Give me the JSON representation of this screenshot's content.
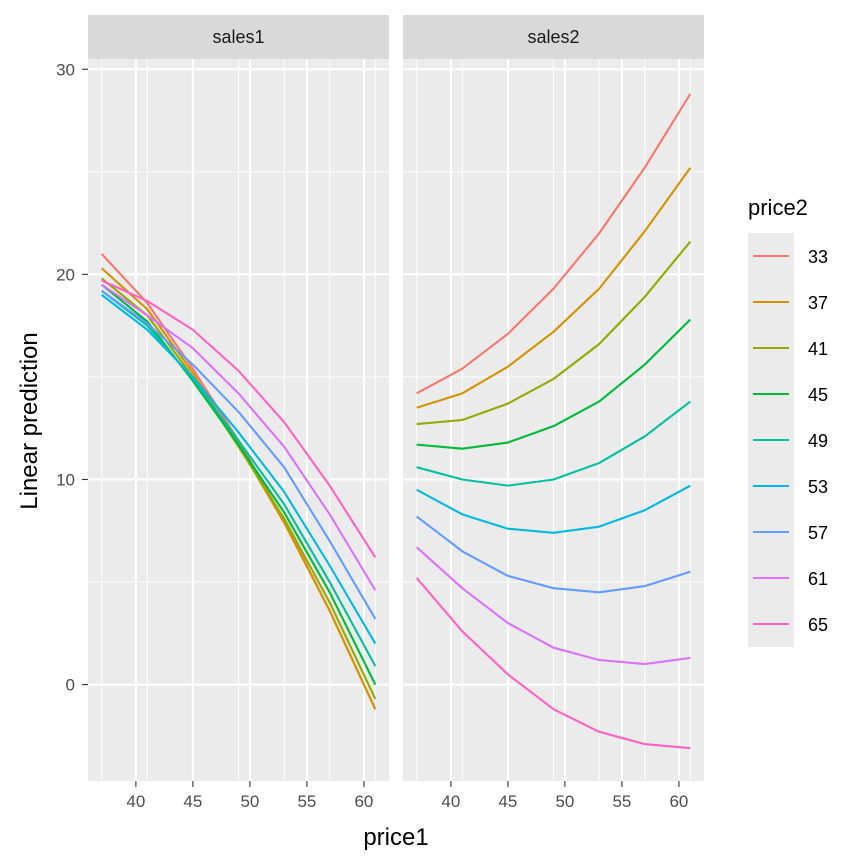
{
  "chart_data": {
    "type": "line",
    "facets": [
      {
        "label": "sales1",
        "series": [
          {
            "name": "33",
            "values": [
              21.0,
              18.6,
              15.4,
              11.9,
              8.0,
              3.6,
              -1.2
            ]
          },
          {
            "name": "37",
            "values": [
              20.3,
              18.3,
              15.2,
              11.7,
              7.9,
              3.6,
              -1.2
            ]
          },
          {
            "name": "41",
            "values": [
              19.8,
              18.0,
              15.0,
              11.6,
              8.1,
              4.0,
              -0.7
            ]
          },
          {
            "name": "45",
            "values": [
              19.5,
              17.7,
              14.8,
              11.7,
              8.4,
              4.5,
              0.0
            ]
          },
          {
            "name": "49",
            "values": [
              19.2,
              17.5,
              14.9,
              11.9,
              8.8,
              5.0,
              0.9
            ]
          },
          {
            "name": "53",
            "values": [
              19.0,
              17.3,
              15.0,
              12.3,
              9.4,
              5.8,
              2.0
            ]
          },
          {
            "name": "57",
            "values": [
              19.2,
              17.6,
              15.6,
              13.3,
              10.6,
              7.0,
              3.2
            ]
          },
          {
            "name": "61",
            "values": [
              19.5,
              18.0,
              16.4,
              14.2,
              11.6,
              8.3,
              4.6
            ]
          },
          {
            "name": "65",
            "values": [
              19.7,
              18.7,
              17.3,
              15.3,
              12.8,
              9.7,
              6.2
            ]
          }
        ]
      },
      {
        "label": "sales2",
        "series": [
          {
            "name": "33",
            "values": [
              14.2,
              15.4,
              17.1,
              19.3,
              22.0,
              25.2,
              28.8
            ]
          },
          {
            "name": "37",
            "values": [
              13.5,
              14.2,
              15.5,
              17.2,
              19.3,
              22.1,
              25.2
            ]
          },
          {
            "name": "41",
            "values": [
              12.7,
              12.9,
              13.7,
              14.9,
              16.6,
              18.9,
              21.6
            ]
          },
          {
            "name": "45",
            "values": [
              11.7,
              11.5,
              11.8,
              12.6,
              13.8,
              15.6,
              17.8
            ]
          },
          {
            "name": "49",
            "values": [
              10.6,
              10.0,
              9.7,
              10.0,
              10.8,
              12.1,
              13.8
            ]
          },
          {
            "name": "53",
            "values": [
              9.5,
              8.3,
              7.6,
              7.4,
              7.7,
              8.5,
              9.7
            ]
          },
          {
            "name": "57",
            "values": [
              8.2,
              6.5,
              5.3,
              4.7,
              4.5,
              4.8,
              5.5
            ]
          },
          {
            "name": "61",
            "values": [
              6.7,
              4.7,
              3.0,
              1.8,
              1.2,
              1.0,
              1.3
            ]
          },
          {
            "name": "65",
            "values": [
              5.2,
              2.6,
              0.5,
              -1.2,
              -2.3,
              -2.9,
              -3.1
            ]
          }
        ]
      }
    ],
    "x": [
      37,
      41,
      45,
      49,
      53,
      57,
      61
    ],
    "xlabel": "price1",
    "ylabel": "Linear prediction",
    "xlim": [
      35.8,
      62.2
    ],
    "ylim": [
      -4.7,
      30.5
    ],
    "xticks": [
      40,
      45,
      50,
      55,
      60
    ],
    "yticks": [
      0,
      10,
      20,
      30
    ],
    "x_minor_grid": [
      37,
      41,
      45,
      49,
      53,
      57,
      61
    ],
    "legend": {
      "title": "price2",
      "position": "right"
    },
    "grid": true,
    "colors": {
      "33": "#F8766D",
      "37": "#D39200",
      "41": "#93AA00",
      "45": "#00BA38",
      "49": "#00C19F",
      "53": "#00B9E3",
      "57": "#619CFF",
      "61": "#DB72FB",
      "65": "#FF61C3"
    },
    "panel_background": "#EBEBEB",
    "strip_background": "#D9D9D9"
  }
}
